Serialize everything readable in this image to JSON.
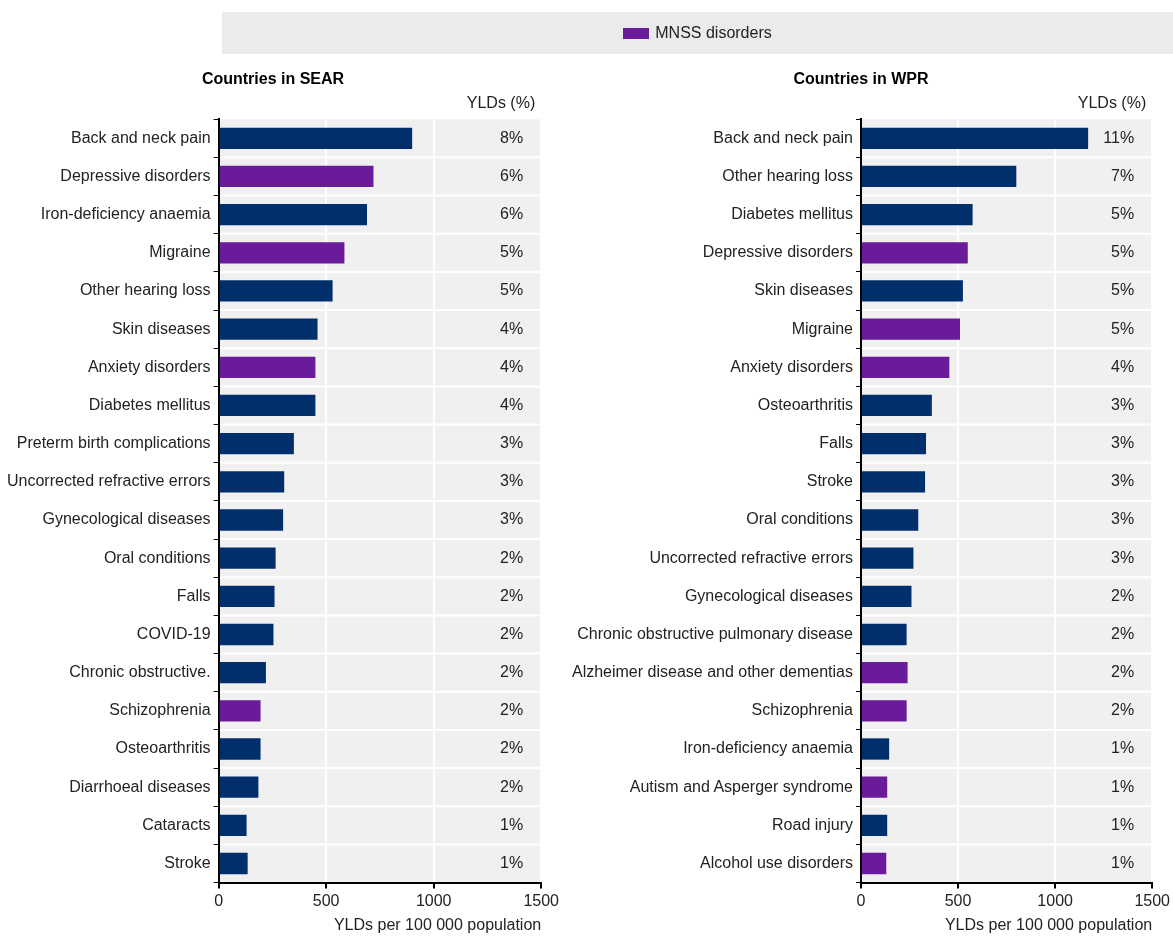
{
  "chart_data": [
    {
      "type": "bar",
      "orientation": "horizontal",
      "title": "Countries in SEAR",
      "xlabel": "YLDs per 100 000 population",
      "annotations": [
        "YLDs (%)"
      ],
      "categories": [
        "Back and neck pain",
        "Depressive disorders",
        "Iron-deficiency anaemia",
        "Migraine",
        "Other hearing loss",
        "Skin diseases",
        "Anxiety disorders",
        "Diabetes mellitus",
        "Preterm birth complications",
        "Uncorrected refractive errors",
        "Gynecological diseases",
        "Oral conditions",
        "Falls",
        "COVID-19",
        "Chronic obstructive.",
        "Schizophrenia",
        "Osteoarthritis",
        "Diarrhoeal diseases",
        "Cataracts",
        "Stroke"
      ],
      "series": [
        {
          "color": "#002f6c",
          "values": [
            900,
            null,
            690,
            null,
            530,
            460,
            null,
            450,
            350,
            305,
            300,
            265,
            260,
            255,
            220,
            null,
            195,
            185,
            130,
            135
          ]
        },
        {
          "name": "MNSS disorders",
          "color": "#6a1b9a",
          "values": [
            null,
            720,
            null,
            585,
            null,
            null,
            450,
            null,
            null,
            null,
            null,
            null,
            null,
            null,
            null,
            195,
            null,
            null,
            null,
            null
          ]
        }
      ],
      "value_labels": [
        "8%",
        "6%",
        "6%",
        "5%",
        "5%",
        "4%",
        "4%",
        "4%",
        "3%",
        "3%",
        "3%",
        "2%",
        "2%",
        "2%",
        "2%",
        "2%",
        "2%",
        "2%",
        "1%",
        "1%"
      ],
      "xlim": [
        0,
        1500
      ],
      "xticks": [
        0,
        500,
        1000,
        1500
      ],
      "grid": "x",
      "legend": "top"
    },
    {
      "type": "bar",
      "orientation": "horizontal",
      "title": "Countries in WPR",
      "xlabel": "YLDs per 100 000 population",
      "annotations": [
        "YLDs (%)"
      ],
      "categories": [
        "Back and neck pain",
        "Other hearing loss",
        "Diabetes mellitus",
        "Depressive disorders",
        "Skin diseases",
        "Migraine",
        "Anxiety disorders",
        "Osteoarthritis",
        "Falls",
        "Stroke",
        "Oral conditions",
        "Uncorrected refractive errors",
        "Gynecological diseases",
        "Chronic obstructive pulmonary disease",
        "Alzheimer disease and other dementias",
        "Schizophrenia",
        "Iron-deficiency anaemia",
        "Autism and Asperger syndrome",
        "Road injury",
        "Alcohol use disorders"
      ],
      "series": [
        {
          "color": "#002f6c",
          "values": [
            1170,
            800,
            575,
            null,
            525,
            null,
            null,
            365,
            335,
            330,
            295,
            270,
            260,
            235,
            null,
            null,
            145,
            null,
            135,
            null
          ]
        },
        {
          "color": "#6a1b9a",
          "values": [
            null,
            null,
            null,
            550,
            null,
            510,
            455,
            null,
            null,
            null,
            null,
            null,
            null,
            null,
            240,
            235,
            null,
            135,
            null,
            130
          ]
        }
      ],
      "value_labels": [
        "11%",
        "7%",
        "5%",
        "5%",
        "5%",
        "5%",
        "4%",
        "3%",
        "3%",
        "3%",
        "3%",
        "3%",
        "2%",
        "2%",
        "2%",
        "2%",
        "1%",
        "1%",
        "1%",
        "1%"
      ],
      "xlim": [
        0,
        1500
      ],
      "xticks": [
        0,
        500,
        1000,
        1500
      ],
      "grid": "x"
    }
  ]
}
